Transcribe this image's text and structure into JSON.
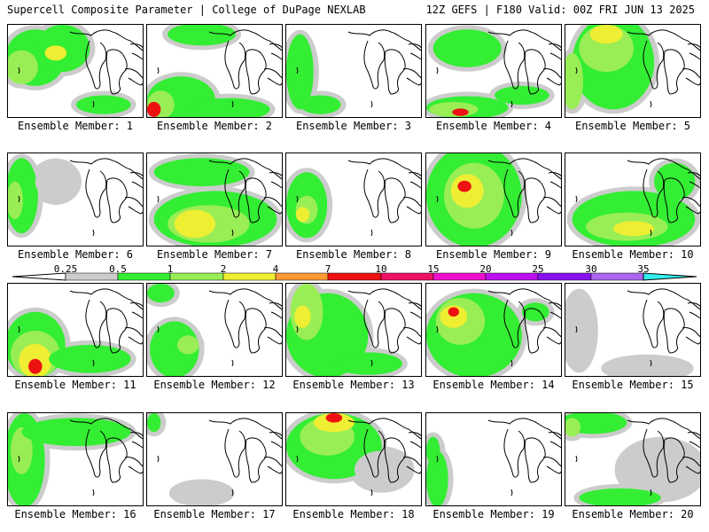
{
  "header": {
    "left_title": "Supercell Composite Parameter | College of DuPage NEXLAB",
    "right_title": "12Z GEFS | F180 Valid: 00Z FRI JUN 13 2025"
  },
  "panel_label_prefix": "Ensemble Member:",
  "members": [
    {
      "n": "1",
      "blobs": [
        [
          0.2,
          0.35,
          0.22,
          0.3,
          1
        ],
        [
          0.4,
          0.25,
          0.2,
          0.25,
          1
        ],
        [
          0.1,
          0.45,
          0.12,
          0.18,
          2
        ],
        [
          0.35,
          0.3,
          0.08,
          0.08,
          3
        ],
        [
          0.7,
          0.85,
          0.2,
          0.1,
          1
        ]
      ]
    },
    {
      "n": "2",
      "blobs": [
        [
          0.25,
          0.8,
          0.25,
          0.25,
          1
        ],
        [
          0.1,
          0.85,
          0.1,
          0.15,
          2
        ],
        [
          0.05,
          0.9,
          0.05,
          0.08,
          5
        ],
        [
          0.6,
          0.9,
          0.3,
          0.12,
          1
        ],
        [
          0.4,
          0.1,
          0.25,
          0.12,
          1
        ]
      ]
    },
    {
      "n": "3",
      "blobs": [
        [
          0.1,
          0.5,
          0.1,
          0.4,
          1
        ],
        [
          0.25,
          0.85,
          0.15,
          0.1,
          1
        ]
      ]
    },
    {
      "n": "4",
      "blobs": [
        [
          0.3,
          0.88,
          0.3,
          0.12,
          1
        ],
        [
          0.2,
          0.9,
          0.18,
          0.08,
          2
        ],
        [
          0.25,
          0.93,
          0.06,
          0.04,
          5
        ],
        [
          0.3,
          0.25,
          0.25,
          0.2,
          1
        ],
        [
          0.7,
          0.75,
          0.2,
          0.1,
          1
        ]
      ]
    },
    {
      "n": "5",
      "blobs": [
        [
          0.35,
          0.4,
          0.3,
          0.5,
          1
        ],
        [
          0.3,
          0.25,
          0.2,
          0.25,
          2
        ],
        [
          0.3,
          0.1,
          0.12,
          0.1,
          3
        ],
        [
          0.05,
          0.6,
          0.08,
          0.3,
          2
        ]
      ]
    },
    {
      "n": "6",
      "blobs": [
        [
          0.1,
          0.45,
          0.12,
          0.4,
          1
        ],
        [
          0.05,
          0.5,
          0.06,
          0.2,
          2
        ],
        [
          0.35,
          0.3,
          0.15,
          0.2,
          0
        ]
      ]
    },
    {
      "n": "7",
      "blobs": [
        [
          0.5,
          0.7,
          0.45,
          0.3,
          1
        ],
        [
          0.45,
          0.75,
          0.3,
          0.2,
          2
        ],
        [
          0.35,
          0.75,
          0.15,
          0.15,
          3
        ],
        [
          0.4,
          0.2,
          0.35,
          0.15,
          1
        ]
      ]
    },
    {
      "n": "8",
      "blobs": [
        [
          0.15,
          0.55,
          0.15,
          0.35,
          1
        ],
        [
          0.15,
          0.6,
          0.08,
          0.15,
          2
        ],
        [
          0.12,
          0.65,
          0.05,
          0.08,
          3
        ]
      ]
    },
    {
      "n": "9",
      "blobs": [
        [
          0.35,
          0.45,
          0.35,
          0.55,
          1
        ],
        [
          0.35,
          0.45,
          0.22,
          0.35,
          2
        ],
        [
          0.3,
          0.4,
          0.12,
          0.18,
          3
        ],
        [
          0.28,
          0.35,
          0.05,
          0.06,
          5
        ]
      ]
    },
    {
      "n": "10",
      "blobs": [
        [
          0.5,
          0.7,
          0.45,
          0.3,
          1
        ],
        [
          0.45,
          0.78,
          0.3,
          0.15,
          2
        ],
        [
          0.5,
          0.8,
          0.15,
          0.08,
          3
        ],
        [
          0.8,
          0.3,
          0.15,
          0.2,
          1
        ]
      ]
    },
    {
      "n": "11",
      "blobs": [
        [
          0.2,
          0.65,
          0.22,
          0.35,
          1
        ],
        [
          0.2,
          0.75,
          0.18,
          0.25,
          2
        ],
        [
          0.2,
          0.82,
          0.12,
          0.18,
          3
        ],
        [
          0.2,
          0.88,
          0.05,
          0.08,
          5
        ],
        [
          0.6,
          0.8,
          0.3,
          0.15,
          1
        ]
      ]
    },
    {
      "n": "12",
      "blobs": [
        [
          0.2,
          0.7,
          0.18,
          0.3,
          1
        ],
        [
          0.1,
          0.1,
          0.1,
          0.1,
          1
        ],
        [
          0.3,
          0.65,
          0.08,
          0.1,
          2
        ]
      ]
    },
    {
      "n": "13",
      "blobs": [
        [
          0.3,
          0.55,
          0.3,
          0.45,
          1
        ],
        [
          0.15,
          0.3,
          0.12,
          0.3,
          2
        ],
        [
          0.12,
          0.35,
          0.06,
          0.12,
          3
        ],
        [
          0.6,
          0.85,
          0.25,
          0.12,
          1
        ]
      ]
    },
    {
      "n": "14",
      "blobs": [
        [
          0.35,
          0.55,
          0.35,
          0.45,
          1
        ],
        [
          0.25,
          0.4,
          0.18,
          0.25,
          2
        ],
        [
          0.2,
          0.35,
          0.1,
          0.12,
          3
        ],
        [
          0.2,
          0.3,
          0.04,
          0.05,
          5
        ],
        [
          0.8,
          0.3,
          0.1,
          0.1,
          1
        ]
      ]
    },
    {
      "n": "15",
      "blobs": [
        [
          0.1,
          0.5,
          0.1,
          0.4,
          0
        ],
        [
          0.6,
          0.9,
          0.3,
          0.1,
          0
        ]
      ]
    },
    {
      "n": "16",
      "blobs": [
        [
          0.12,
          0.5,
          0.15,
          0.5,
          1
        ],
        [
          0.1,
          0.4,
          0.08,
          0.25,
          2
        ],
        [
          0.5,
          0.2,
          0.4,
          0.15,
          1
        ]
      ]
    },
    {
      "n": "17",
      "blobs": [
        [
          0.05,
          0.1,
          0.05,
          0.1,
          1
        ],
        [
          0.4,
          0.85,
          0.2,
          0.1,
          0
        ]
      ]
    },
    {
      "n": "18",
      "blobs": [
        [
          0.35,
          0.35,
          0.35,
          0.35,
          1
        ],
        [
          0.3,
          0.25,
          0.2,
          0.2,
          2
        ],
        [
          0.35,
          0.1,
          0.15,
          0.1,
          3
        ],
        [
          0.35,
          0.05,
          0.06,
          0.05,
          5
        ],
        [
          0.7,
          0.6,
          0.2,
          0.2,
          0
        ]
      ]
    },
    {
      "n": "19",
      "blobs": [
        [
          0.08,
          0.7,
          0.08,
          0.3,
          1
        ],
        [
          0.05,
          0.4,
          0.05,
          0.15,
          1
        ]
      ]
    },
    {
      "n": "20",
      "blobs": [
        [
          0.2,
          0.1,
          0.25,
          0.12,
          1
        ],
        [
          0.05,
          0.15,
          0.06,
          0.1,
          2
        ],
        [
          0.7,
          0.6,
          0.3,
          0.3,
          0
        ],
        [
          0.4,
          0.9,
          0.3,
          0.1,
          1
        ]
      ]
    }
  ],
  "colorbar": {
    "ticks": [
      "0.25",
      "0.5",
      "1",
      "2",
      "4",
      "7",
      "10",
      "15",
      "20",
      "25",
      "30",
      "35"
    ],
    "colors": [
      "#cccccc",
      "#33ee33",
      "#99ee55",
      "#eeee33",
      "#ff9933",
      "#ee1111",
      "#ee1166",
      "#ee11cc",
      "#bb11ee",
      "#8811ee",
      "#aa66ee",
      "#33eeee"
    ]
  }
}
